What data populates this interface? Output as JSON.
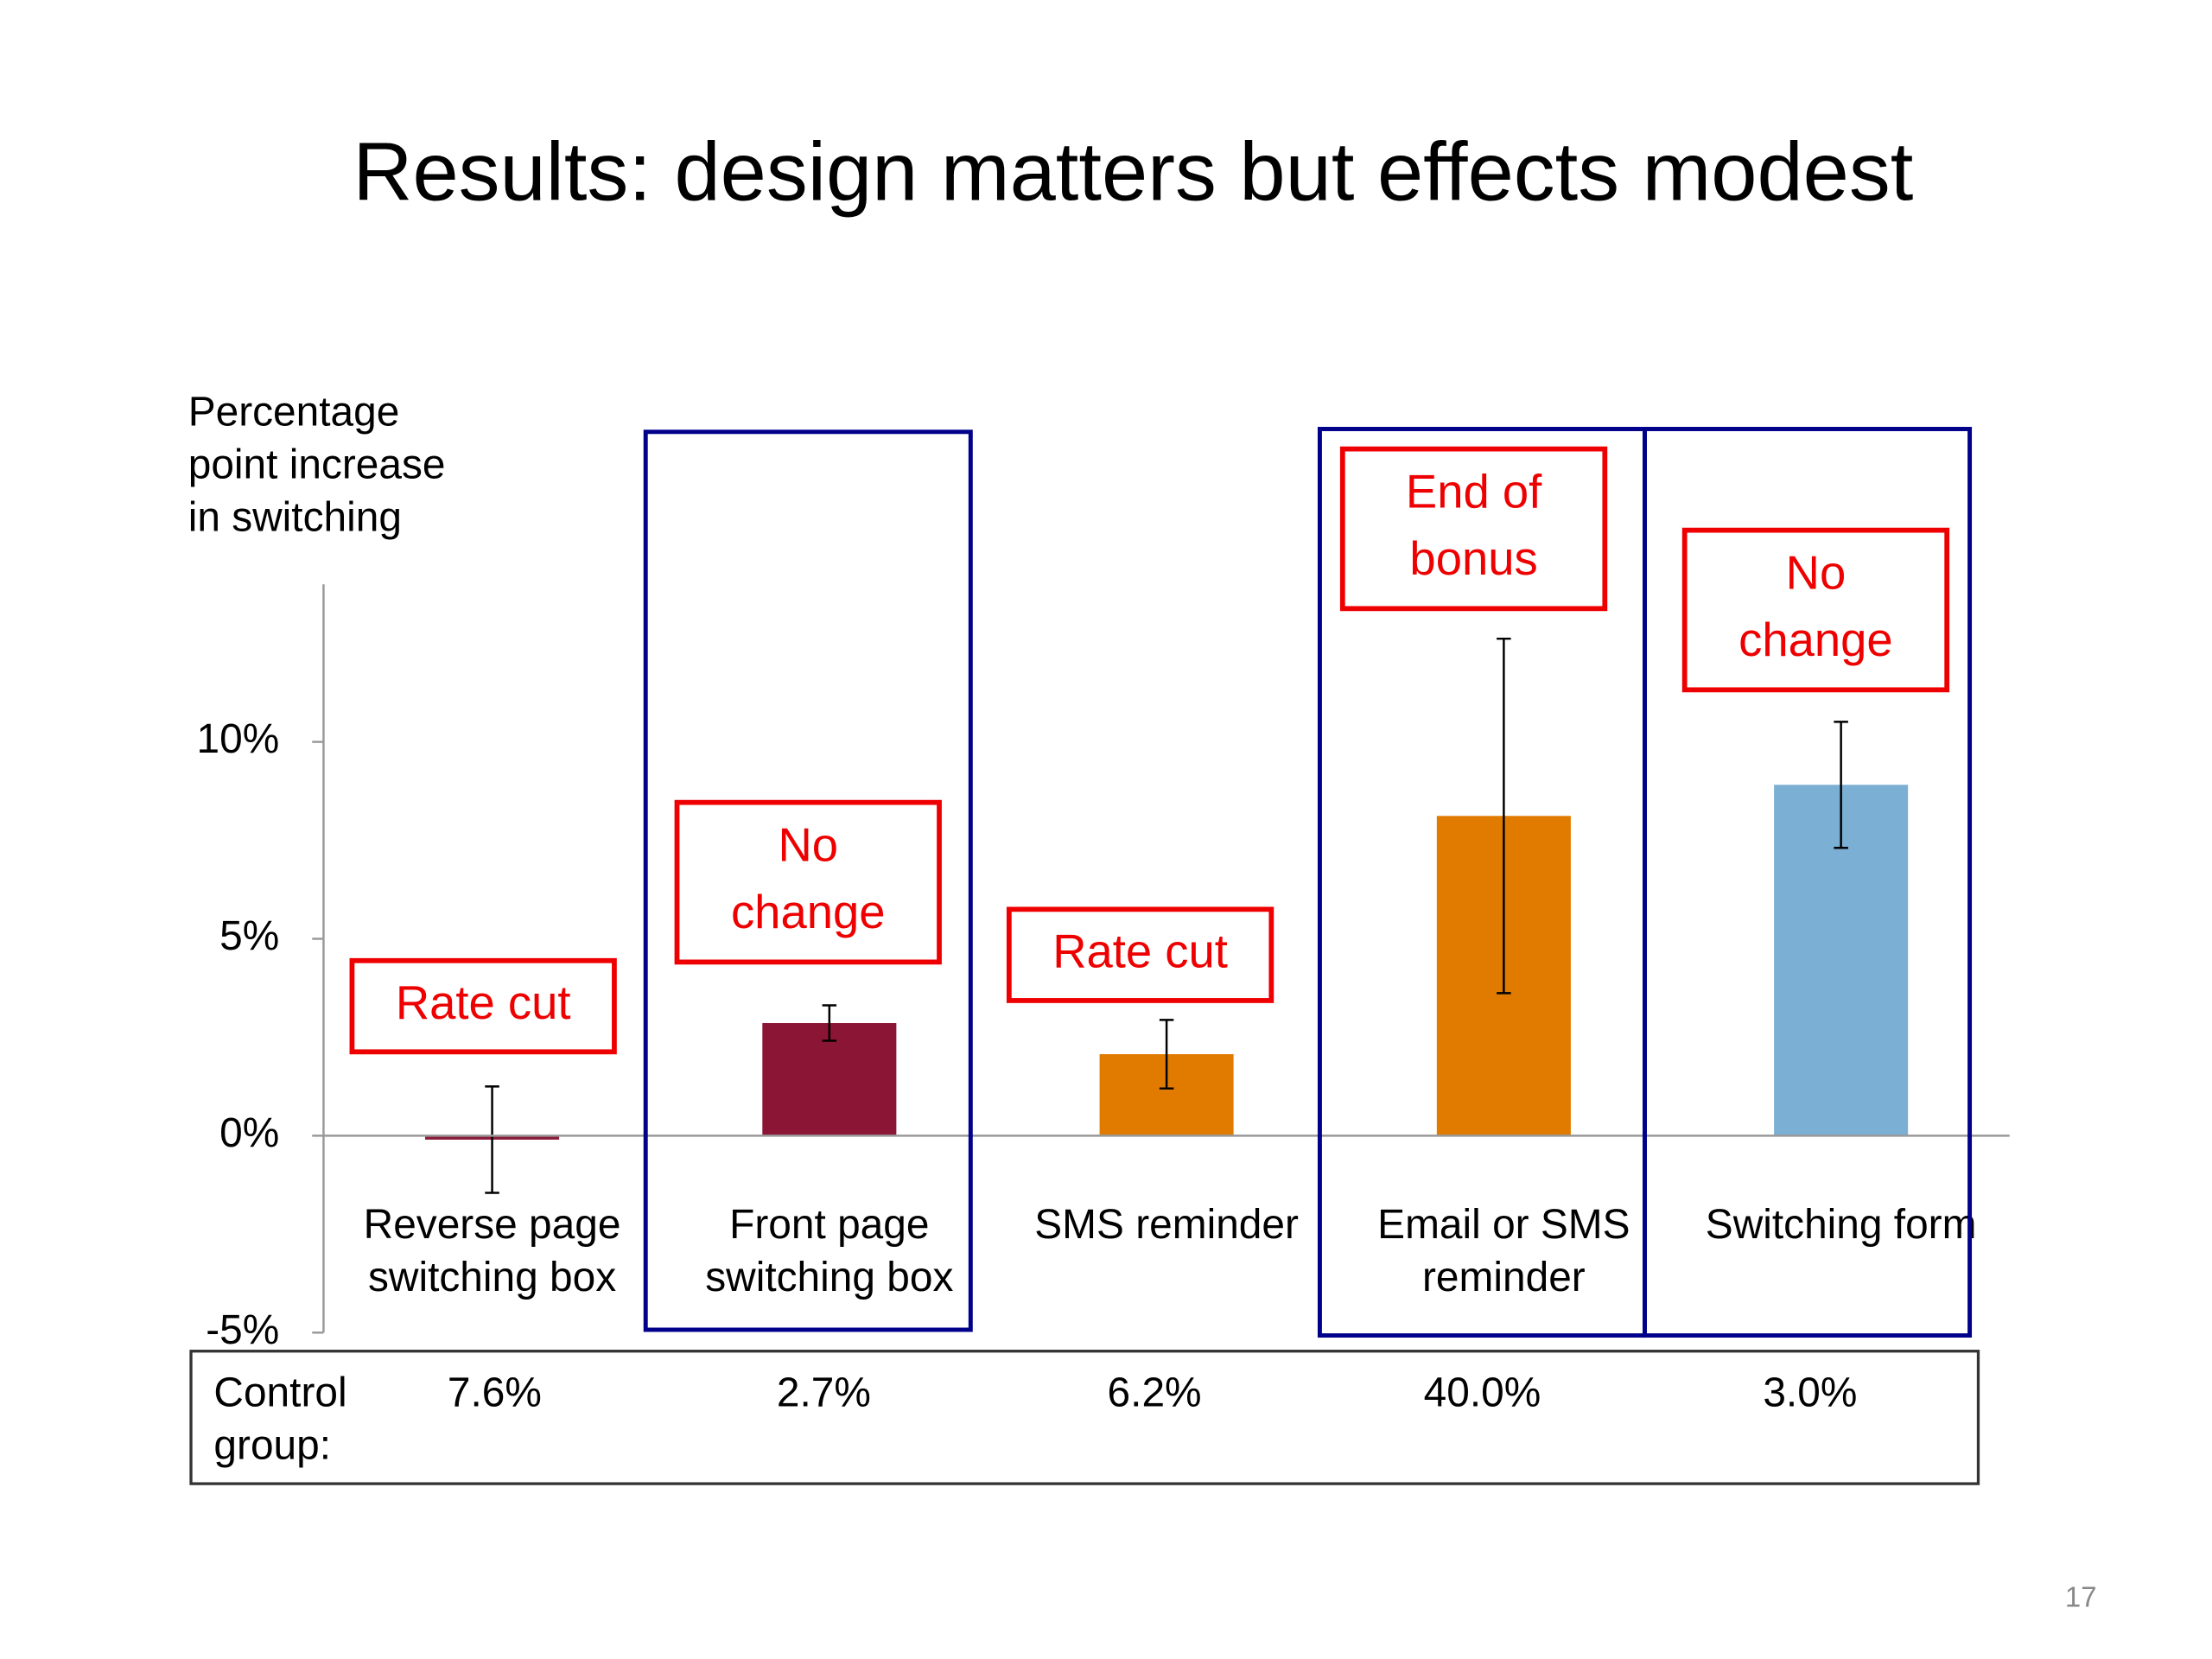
{
  "title": "Results: design matters but effects modest",
  "page_number": "17",
  "chart_data": {
    "type": "bar",
    "y_axis_label": [
      "Percentage",
      "point increase",
      "in switching"
    ],
    "categories": [
      [
        "Reverse page",
        "switching box"
      ],
      [
        "Front page",
        "switching box"
      ],
      [
        "SMS reminder"
      ],
      [
        "Email or SMS",
        "reminder"
      ],
      [
        "Switching form"
      ]
    ],
    "values": [
      -0.1,
      2.86,
      2.07,
      8.12,
      8.91
    ],
    "errors": [
      1.35,
      0.45,
      0.87,
      4.5,
      1.6
    ],
    "colors": [
      "#8b1a3a",
      "#8b1535",
      "#e07b00",
      "#e07b00",
      "#7bafd4"
    ],
    "ylim": [
      -5,
      14
    ],
    "yticks": [
      {
        "value": -5,
        "label": "-5%"
      },
      {
        "value": 0,
        "label": "0%"
      },
      {
        "value": 5,
        "label": "5%"
      },
      {
        "value": 10,
        "label": "10%"
      }
    ],
    "annotations": [
      [
        "Rate cut"
      ],
      [
        "No",
        "change"
      ],
      [
        "Rate cut"
      ],
      [
        "End of",
        "bonus"
      ],
      [
        "No",
        "change"
      ]
    ]
  },
  "control_group": {
    "label": [
      "Control",
      "group:"
    ],
    "values": [
      "7.6%",
      "2.7%",
      "6.2%",
      "40.0%",
      "3.0%"
    ]
  }
}
